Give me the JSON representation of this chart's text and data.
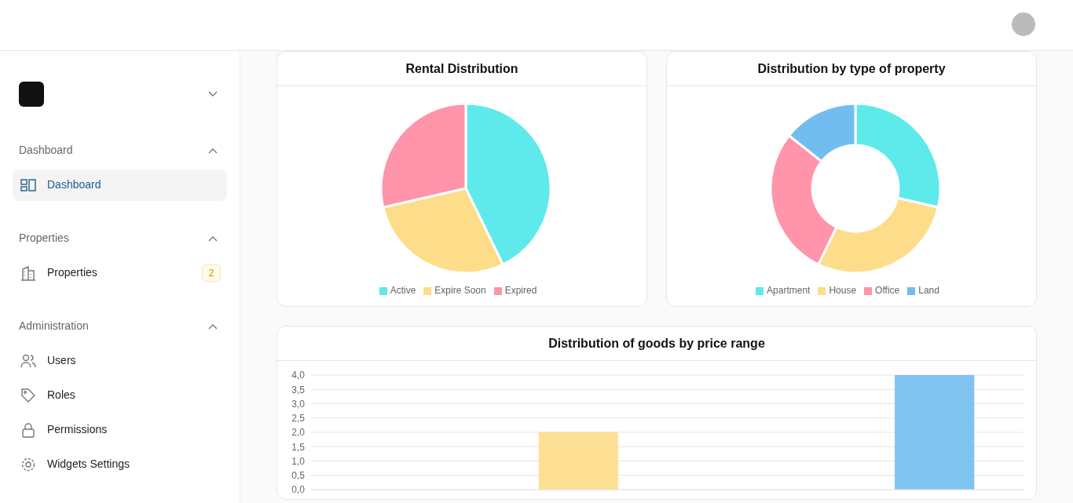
{
  "chart_data": [
    {
      "type": "pie",
      "title": "Rental Distribution",
      "categories": [
        "Active",
        "Expire Soon",
        "Expired"
      ],
      "values": [
        42.8,
        28.6,
        28.6
      ],
      "colors": [
        "#5eeaea",
        "#fedd8a",
        "#ff94aa"
      ],
      "legend": "bottom"
    },
    {
      "type": "donut",
      "title": "Distribution by type of property",
      "categories": [
        "Apartment",
        "House",
        "Office",
        "Land"
      ],
      "values": [
        28.6,
        28.6,
        28.5,
        14.3
      ],
      "colors": [
        "#5eeaea",
        "#fedd8a",
        "#ff94aa",
        "#72bdf0"
      ],
      "legend": "bottom"
    },
    {
      "type": "bar",
      "title": "Distribution of goods by price range",
      "categories": [
        null,
        null,
        null,
        null
      ],
      "values": [
        0,
        2,
        0,
        4
      ],
      "colors": [
        "#fedd8a",
        "#fedd8a",
        "#fedd8a",
        "#72bdf0"
      ],
      "ylim": [
        0,
        4
      ],
      "yticks": [
        {
          "value": 0,
          "label": "0,0"
        },
        {
          "value": 0.5,
          "label": "0,5"
        },
        {
          "value": 1,
          "label": "1,0"
        },
        {
          "value": 1.5,
          "label": "1,5"
        },
        {
          "value": 2,
          "label": "2,0"
        },
        {
          "value": 2.5,
          "label": "2,5"
        },
        {
          "value": 3,
          "label": "3,0"
        },
        {
          "value": 3.5,
          "label": "3,5"
        },
        {
          "value": 4,
          "label": "4,0"
        }
      ],
      "grid": "y"
    },
    {
      "type": "other",
      "annotations": [
        "Dashboard",
        "Dashboard",
        "Properties",
        "Properties",
        "2",
        "Administration",
        "Users",
        "Roles",
        "Permissions",
        "Widgets Settings"
      ]
    }
  ]
}
